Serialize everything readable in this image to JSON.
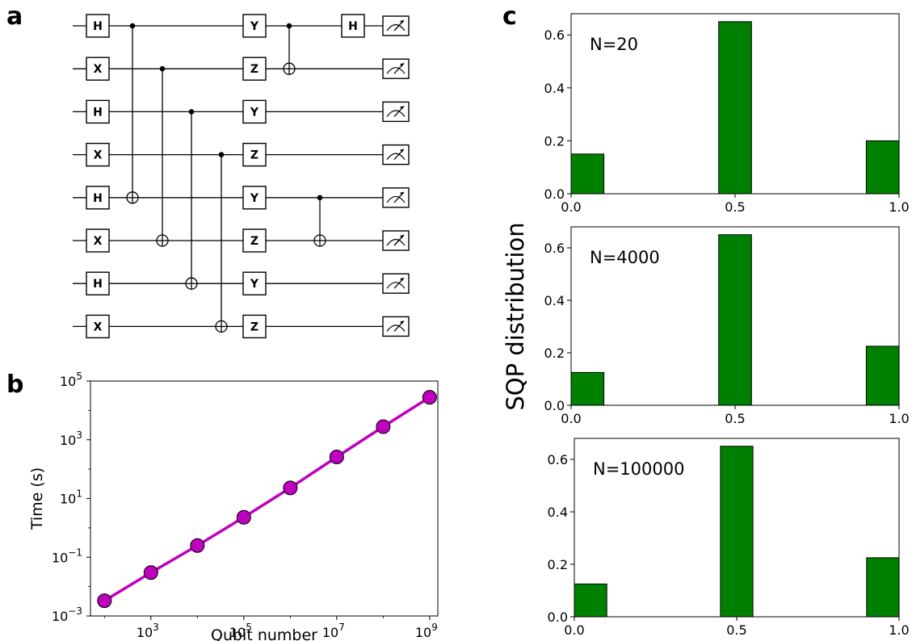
{
  "panels": {
    "a": {
      "label": "a",
      "circuit": {
        "qubits": 8,
        "layer1": [
          "H",
          "X",
          "H",
          "X",
          "H",
          "X",
          "H",
          "X"
        ],
        "layer2": [
          "Y",
          "Z",
          "Y",
          "Z",
          "Y",
          "Z",
          "Y",
          "Z"
        ],
        "cnots_first": [
          [
            0,
            4
          ],
          [
            1,
            5
          ],
          [
            2,
            6
          ],
          [
            3,
            7
          ]
        ],
        "cnots_second": [
          [
            0,
            1
          ],
          [
            4,
            5
          ]
        ],
        "final_gate": {
          "qubit": 0,
          "label": "H"
        },
        "measure_icon": "measurement-meter-icon"
      }
    },
    "b": {
      "label": "b"
    },
    "c": {
      "label": "c",
      "ylabel": "SQP distribution"
    }
  },
  "chart_data": [
    {
      "type": "line",
      "marker": "circle",
      "xlabel": "Qubit number",
      "ylabel": "Time (s)",
      "xscale": "log",
      "yscale": "log",
      "xlim": [
        50,
        1500000000
      ],
      "ylim": [
        0.001,
        100000
      ],
      "xticks": [
        {
          "value": 1000,
          "base": "10",
          "exp": "3"
        },
        {
          "value": 100000,
          "base": "10",
          "exp": "5"
        },
        {
          "value": 10000000,
          "base": "10",
          "exp": "7"
        },
        {
          "value": 1000000000,
          "base": "10",
          "exp": "9"
        }
      ],
      "yticks": [
        {
          "value": 0.001,
          "base": "10",
          "exp": "−3"
        },
        {
          "value": 0.1,
          "base": "10",
          "exp": "−1"
        },
        {
          "value": 10,
          "base": "10",
          "exp": "1"
        },
        {
          "value": 1000,
          "base": "10",
          "exp": "3"
        },
        {
          "value": 100000,
          "base": "10",
          "exp": "5"
        }
      ],
      "x": [
        100,
        1000,
        10000,
        100000,
        1000000,
        10000000,
        100000000,
        1000000000
      ],
      "y": [
        0.0033,
        0.03,
        0.25,
        2.3,
        23,
        260,
        2800,
        28000
      ],
      "colors": {
        "line": "#bf00bf",
        "marker": "#bf00bf",
        "marker_edge": "#000000"
      }
    },
    {
      "type": "bar",
      "annotation": "N=20",
      "x_centers": [
        0.05,
        0.5,
        0.95
      ],
      "bar_width": 0.1,
      "values": [
        0.15,
        0.65,
        0.2
      ],
      "xlim": [
        0,
        1
      ],
      "ylim": [
        0,
        0.68
      ],
      "xticks": [
        "0.0",
        "0.5",
        "1.0"
      ],
      "yticks": [
        "0.0",
        "0.2",
        "0.4",
        "0.6"
      ],
      "color": "#008000"
    },
    {
      "type": "bar",
      "annotation": "N=4000",
      "x_centers": [
        0.05,
        0.5,
        0.95
      ],
      "bar_width": 0.1,
      "values": [
        0.125,
        0.65,
        0.225
      ],
      "xlim": [
        0,
        1
      ],
      "ylim": [
        0,
        0.68
      ],
      "xticks": [
        "0.0",
        "0.5",
        "1.0"
      ],
      "yticks": [
        "0.0",
        "0.2",
        "0.4",
        "0.6"
      ],
      "color": "#008000"
    },
    {
      "type": "bar",
      "annotation": "N=100000",
      "x_centers": [
        0.05,
        0.5,
        0.95
      ],
      "bar_width": 0.1,
      "values": [
        0.125,
        0.65,
        0.225
      ],
      "xlim": [
        0,
        1
      ],
      "ylim": [
        0,
        0.68
      ],
      "xticks": [
        "0.0",
        "0.5",
        "1.0"
      ],
      "yticks": [
        "0.0",
        "0.2",
        "0.4",
        "0.6"
      ],
      "color": "#008000"
    }
  ]
}
